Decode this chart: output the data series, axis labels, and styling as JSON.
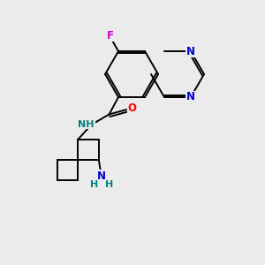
{
  "bg_color": "#ebebeb",
  "atom_colors": {
    "N": "#0000cc",
    "O": "#ff0000",
    "F": "#cc00cc",
    "NH": "#008080",
    "C": "#000000"
  }
}
